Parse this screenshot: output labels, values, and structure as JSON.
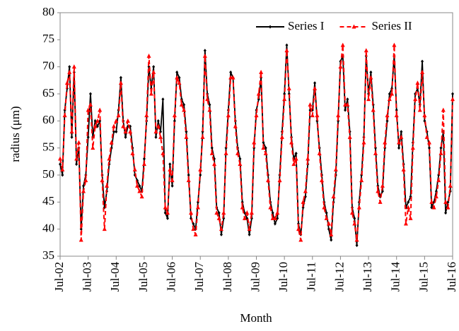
{
  "chart_data": {
    "type": "line",
    "ylabel": "radius (μm)",
    "xlabel": "Month",
    "categories": [
      "Jul-02",
      null,
      null,
      null,
      null,
      null,
      null,
      null,
      null,
      null,
      null,
      null,
      "Jul-03",
      null,
      null,
      null,
      null,
      null,
      null,
      null,
      null,
      null,
      null,
      null,
      "Jul-04",
      null,
      null,
      null,
      null,
      null,
      null,
      null,
      null,
      null,
      null,
      null,
      "Jul-05",
      null,
      null,
      null,
      null,
      null,
      null,
      null,
      null,
      null,
      null,
      null,
      "Jul-06",
      null,
      null,
      null,
      null,
      null,
      null,
      null,
      null,
      null,
      null,
      null,
      "Jul-07",
      null,
      null,
      null,
      null,
      null,
      null,
      null,
      null,
      null,
      null,
      null,
      "Jul-08",
      null,
      null,
      null,
      null,
      null,
      null,
      null,
      null,
      null,
      null,
      null,
      "Jul-09",
      null,
      null,
      null,
      null,
      null,
      null,
      null,
      null,
      null,
      null,
      null,
      "Jul-10",
      null,
      null,
      null,
      null,
      null,
      null,
      null,
      null,
      null,
      null,
      null,
      "Jul-11",
      null,
      null,
      null,
      null,
      null,
      null,
      null,
      null,
      null,
      null,
      null,
      "Jul-12",
      null,
      null,
      null,
      null,
      null,
      null,
      null,
      null,
      null,
      null,
      null,
      "Jul-13",
      null,
      null,
      null,
      null,
      null,
      null,
      null,
      null,
      null,
      null,
      null,
      "Jul-14",
      null,
      null,
      null,
      null,
      null,
      null,
      null,
      null,
      null,
      null,
      null,
      "Jul-15",
      null,
      null,
      null,
      null,
      null,
      null,
      null,
      null,
      null,
      null,
      null,
      "Jul-16"
    ],
    "series": [
      {
        "name": "Series I",
        "color": "#000000",
        "dashed": false,
        "marker": "diamond",
        "values": [
          52,
          50,
          62,
          66,
          70,
          57,
          69,
          52,
          55,
          40,
          48,
          50,
          57,
          65,
          57,
          60,
          59,
          60,
          50,
          44,
          47,
          52,
          55,
          58,
          58,
          62,
          68,
          60,
          57,
          59,
          59,
          55,
          50,
          49,
          48,
          47,
          53,
          60,
          70,
          66,
          70,
          57,
          60,
          58,
          64,
          43,
          42,
          52,
          48,
          60,
          69,
          68,
          64,
          63,
          58,
          50,
          42,
          41,
          40,
          45,
          50,
          58,
          73,
          65,
          63,
          55,
          53,
          44,
          43,
          39,
          42,
          55,
          62,
          69,
          68,
          60,
          55,
          53,
          45,
          43,
          42,
          39,
          42,
          55,
          62,
          64,
          68,
          56,
          55,
          50,
          45,
          43,
          41,
          42,
          50,
          58,
          65,
          74,
          65,
          57,
          53,
          54,
          41,
          39,
          44,
          46,
          52,
          62,
          62,
          67,
          60,
          55,
          50,
          45,
          43,
          40,
          38,
          45,
          50,
          60,
          71,
          72,
          62,
          64,
          58,
          44,
          42,
          37,
          45,
          50,
          57,
          72,
          65,
          69,
          63,
          55,
          48,
          46,
          47,
          55,
          60,
          65,
          66,
          72,
          62,
          55,
          58,
          52,
          44,
          45,
          46,
          56,
          65,
          66,
          63,
          71,
          60,
          58,
          55,
          44,
          45,
          47,
          50,
          55,
          58,
          43,
          45,
          47,
          65
        ]
      },
      {
        "name": "Series II",
        "color": "#ff0000",
        "dashed": true,
        "marker": "triangle",
        "values": [
          53,
          51,
          61,
          67,
          69,
          58,
          70,
          53,
          56,
          38,
          47,
          49,
          62,
          63,
          55,
          59,
          60,
          62,
          49,
          40,
          48,
          53,
          56,
          59,
          60,
          61,
          67,
          59,
          58,
          60,
          58,
          54,
          51,
          48,
          47,
          46,
          52,
          61,
          72,
          65,
          69,
          58,
          59,
          57,
          54,
          44,
          43,
          51,
          49,
          61,
          68,
          67,
          63,
          62,
          57,
          49,
          43,
          40,
          39,
          44,
          51,
          57,
          72,
          64,
          62,
          54,
          52,
          43,
          42,
          40,
          43,
          54,
          61,
          68,
          68,
          59,
          54,
          52,
          44,
          42,
          43,
          40,
          43,
          56,
          61,
          65,
          69,
          55,
          54,
          49,
          44,
          42,
          42,
          43,
          49,
          57,
          64,
          73,
          66,
          56,
          52,
          53,
          40,
          38,
          45,
          47,
          53,
          63,
          61,
          66,
          61,
          54,
          49,
          44,
          42,
          41,
          39,
          46,
          51,
          61,
          70,
          74,
          63,
          63,
          57,
          43,
          41,
          38,
          44,
          49,
          56,
          73,
          64,
          68,
          62,
          54,
          47,
          45,
          48,
          56,
          61,
          64,
          65,
          74,
          61,
          56,
          57,
          51,
          41,
          44,
          42,
          55,
          64,
          67,
          62,
          69,
          61,
          57,
          56,
          45,
          44,
          46,
          49,
          54,
          62,
          45,
          44,
          48,
          64
        ]
      }
    ],
    "ylim": [
      35,
      80
    ],
    "yticks": [
      35,
      40,
      45,
      50,
      55,
      60,
      65,
      70,
      75,
      80
    ],
    "grid": false,
    "legend": "upper right"
  }
}
